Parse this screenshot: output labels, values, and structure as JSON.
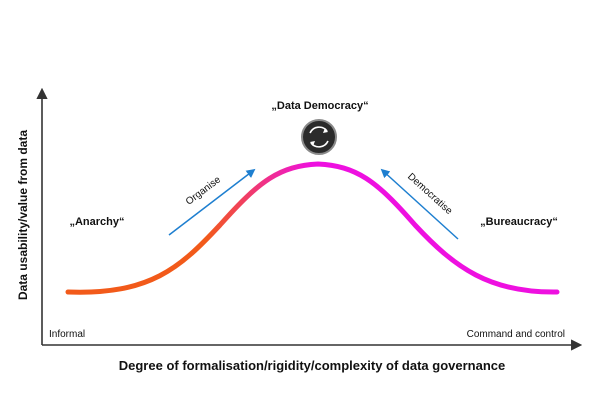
{
  "diagram": {
    "y_axis_label": "Data usability/value from data",
    "x_axis_label": "Degree of formalisation/rigidity/complexity of data governance",
    "x_axis_start_label": "Informal",
    "x_axis_end_label": "Command and control",
    "peak_label": "„Data Democracy“",
    "left_label": "„Anarchy“",
    "right_label": "„Bureaucracy“",
    "left_arrow_label": "Organise",
    "right_arrow_label": "Democratise",
    "peak_icon": "cycle-arrows-icon",
    "colors": {
      "axis": "#333333",
      "text": "#111111",
      "curve_orange": "#f25a1a",
      "curve_magenta": "#ee10e0",
      "arrow_blue": "#1e7fd0",
      "icon_fill": "#2b2b2b",
      "icon_ring": "#8a8a8a"
    }
  }
}
